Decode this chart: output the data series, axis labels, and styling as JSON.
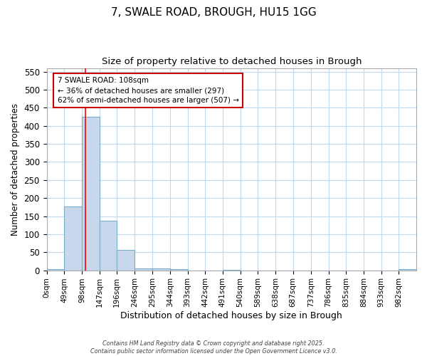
{
  "title": "7, SWALE ROAD, BROUGH, HU15 1GG",
  "subtitle": "Size of property relative to detached houses in Brough",
  "xlabel": "Distribution of detached houses by size in Brough",
  "ylabel": "Number of detached properties",
  "bar_values": [
    4,
    177,
    425,
    137,
    57,
    5,
    5,
    3,
    0,
    0,
    1,
    0,
    0,
    0,
    0,
    0,
    0,
    0,
    0,
    0,
    3
  ],
  "bin_edges": [
    0,
    49,
    98,
    147,
    196,
    246,
    295,
    344,
    393,
    442,
    491,
    540,
    589,
    638,
    687,
    737,
    786,
    835,
    884,
    933,
    982,
    1031
  ],
  "bin_labels": [
    "0sqm",
    "49sqm",
    "98sqm",
    "147sqm",
    "196sqm",
    "246sqm",
    "295sqm",
    "344sqm",
    "393sqm",
    "442sqm",
    "491sqm",
    "540sqm",
    "589sqm",
    "638sqm",
    "687sqm",
    "737sqm",
    "786sqm",
    "835sqm",
    "884sqm",
    "933sqm",
    "982sqm"
  ],
  "bar_color": "#c8d8ec",
  "bar_edge_color": "#7aaccc",
  "bar_linewidth": 0.8,
  "red_line_x": 108,
  "annotation_text": "7 SWALE ROAD: 108sqm\n← 36% of detached houses are smaller (297)\n62% of semi-detached houses are larger (507) →",
  "annotation_box_color": "#cc0000",
  "annotation_bg": "#ffffff",
  "ylim": [
    0,
    560
  ],
  "yticks": [
    0,
    50,
    100,
    150,
    200,
    250,
    300,
    350,
    400,
    450,
    500,
    550
  ],
  "background_color": "#ffffff",
  "plot_bg_color": "#ffffff",
  "grid_color": "#c0d8f0",
  "footer_line1": "Contains HM Land Registry data © Crown copyright and database right 2025.",
  "footer_line2": "Contains public sector information licensed under the Open Government Licence v3.0."
}
